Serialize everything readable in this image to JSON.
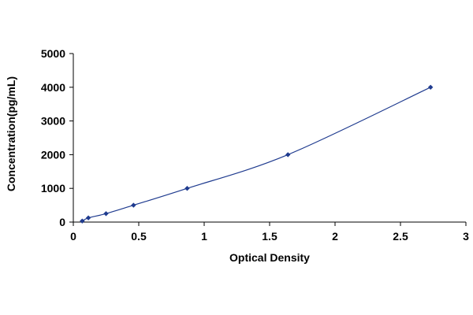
{
  "chart_data": {
    "type": "scatter",
    "title": "",
    "xlabel": "Optical Density",
    "ylabel": "Concentration(pg/mL)",
    "xlim": [
      0,
      3
    ],
    "ylim": [
      0,
      5000
    ],
    "xticks": [
      "0",
      "0.5",
      "1",
      "1.5",
      "2",
      "2.5",
      "3"
    ],
    "xtick_values": [
      0,
      0.5,
      1,
      1.5,
      2,
      2.5,
      3
    ],
    "yticks": [
      "0",
      "1000",
      "2000",
      "3000",
      "4000",
      "5000"
    ],
    "ytick_values": [
      0,
      1000,
      2000,
      3000,
      4000,
      5000
    ],
    "grid": false,
    "legend": "none",
    "marker_color": "#1f3b8f",
    "line_color": "#1f3b8f",
    "trend": "smooth curve through points",
    "series": [
      {
        "points": [
          {
            "x": 0.068,
            "y": 31.25
          },
          {
            "x": 0.115,
            "y": 125
          },
          {
            "x": 0.25,
            "y": 250
          },
          {
            "x": 0.46,
            "y": 500
          },
          {
            "x": 0.87,
            "y": 1000
          },
          {
            "x": 1.64,
            "y": 2000
          },
          {
            "x": 2.73,
            "y": 4000
          }
        ]
      }
    ]
  }
}
